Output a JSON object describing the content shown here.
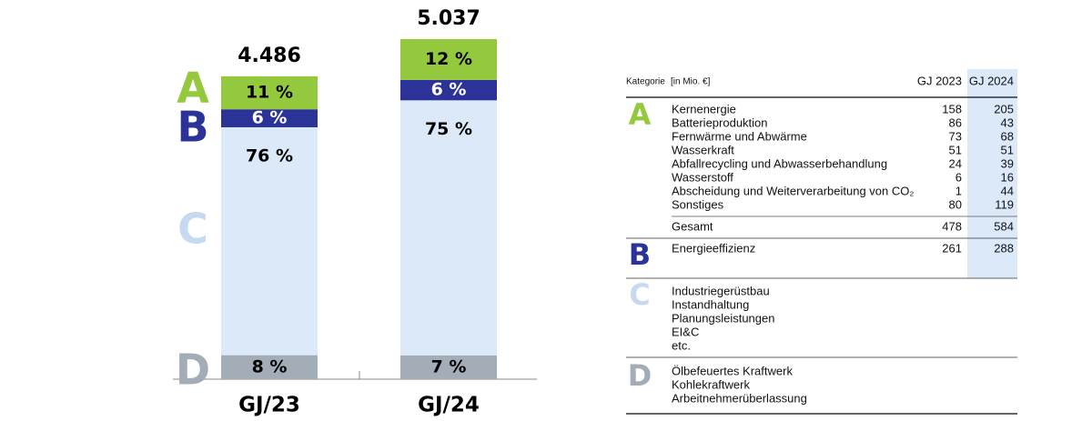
{
  "chart_data": {
    "type": "bar",
    "categories": [
      "GJ/23",
      "GJ/24"
    ],
    "totals": [
      4486,
      5037
    ],
    "total_labels": [
      "4.486",
      "5.037"
    ],
    "series": [
      {
        "name": "A",
        "color": "#94c93d",
        "label_color": "#000000",
        "values": [
          11,
          12
        ],
        "value_labels": [
          "11 %",
          "12 %"
        ]
      },
      {
        "name": "B",
        "color": "#2b3398",
        "label_color": "#ffffff",
        "values": [
          6,
          6
        ],
        "value_labels": [
          "6 %",
          "6 %"
        ]
      },
      {
        "name": "C",
        "color": "#dce9f8",
        "letter_color": "#c5daf0",
        "label_color": "#000000",
        "values": [
          76,
          75
        ],
        "value_labels": [
          "76 %",
          "75 %"
        ]
      },
      {
        "name": "D",
        "color": "#a3adb8",
        "label_color": "#000000",
        "values": [
          8,
          7
        ],
        "value_labels": [
          "8 %",
          "7 %"
        ]
      }
    ]
  },
  "table": {
    "headers": [
      "Kategorie",
      "[in Mio. €]",
      "GJ 2023",
      "GJ 2024"
    ],
    "highlight_color": "#dce9f8",
    "groups": [
      {
        "letter": "A",
        "color": "#94c93d",
        "rows": [
          {
            "label": "Kernenergie",
            "values": [
              158,
              205
            ]
          },
          {
            "label": "Batterieproduktion",
            "values": [
              86,
              43
            ]
          },
          {
            "label": "Fernwärme und Abwärme",
            "values": [
              73,
              68
            ]
          },
          {
            "label": "Wasserkraft",
            "values": [
              51,
              51
            ]
          },
          {
            "label": "Abfallrecycling und Abwasserbehandlung",
            "values": [
              24,
              39
            ]
          },
          {
            "label": "Wasserstoff",
            "values": [
              6,
              16
            ]
          },
          {
            "label": "Abscheidung und Weiterverarbeitung von CO₂",
            "values": [
              1,
              44
            ]
          },
          {
            "label": "Sonstiges",
            "values": [
              80,
              119
            ]
          }
        ],
        "total": {
          "label": "Gesamt",
          "values": [
            478,
            584
          ]
        }
      },
      {
        "letter": "B",
        "color": "#2b3398",
        "rows": [
          {
            "label": "Energieeffizienz",
            "values": [
              261,
              288
            ]
          }
        ]
      },
      {
        "letter": "C",
        "color": "#c5daf0",
        "rows": [
          {
            "label": "Industriegerüstbau"
          },
          {
            "label": "Instandhaltung"
          },
          {
            "label": "Planungsleistungen"
          },
          {
            "label": "EI&C"
          },
          {
            "label": "etc."
          }
        ]
      },
      {
        "letter": "D",
        "color": "#a3adb8",
        "rows": [
          {
            "label": "Ölbefeuertes Kraftwerk"
          },
          {
            "label": "Kohlekraftwerk"
          },
          {
            "label": "Arbeitnehmerüberlassung"
          }
        ]
      }
    ]
  }
}
